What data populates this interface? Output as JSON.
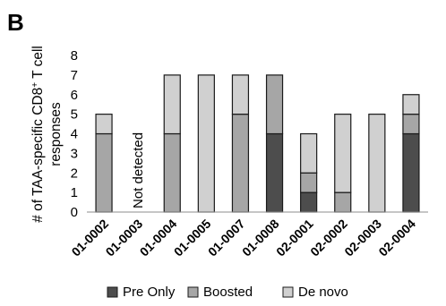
{
  "panel_label": "B",
  "chart_data": {
    "type": "bar",
    "stacked": true,
    "ylabel_line1": "# of TAA-specific CD8",
    "ylabel_sup": "+",
    "ylabel_line1_end": " T cell",
    "ylabel_line2": "responses",
    "ylim": [
      0,
      8
    ],
    "yticks": [
      0,
      1,
      2,
      3,
      4,
      5,
      6,
      7,
      8
    ],
    "categories": [
      "01-0002",
      "01-0003",
      "01-0004",
      "01-0005",
      "01-0007",
      "01-0008",
      "02-0001",
      "02-0002",
      "02-0003",
      "02-0004"
    ],
    "series": [
      {
        "name": "Pre Only",
        "color": "#4d4d4d",
        "values": [
          0,
          0,
          0,
          0,
          0,
          4,
          1,
          0,
          0,
          4
        ]
      },
      {
        "name": "Boosted",
        "color": "#a6a6a6",
        "values": [
          4,
          0,
          4,
          0,
          5,
          3,
          1,
          1,
          0,
          1
        ]
      },
      {
        "name": "De novo",
        "color": "#d0d0d0",
        "values": [
          1,
          0,
          3,
          7,
          2,
          0,
          2,
          4,
          5,
          1
        ]
      }
    ],
    "annotations": [
      {
        "category": "01-0003",
        "text": "Not detected"
      }
    ],
    "grid": false,
    "legend_position": "bottom"
  }
}
